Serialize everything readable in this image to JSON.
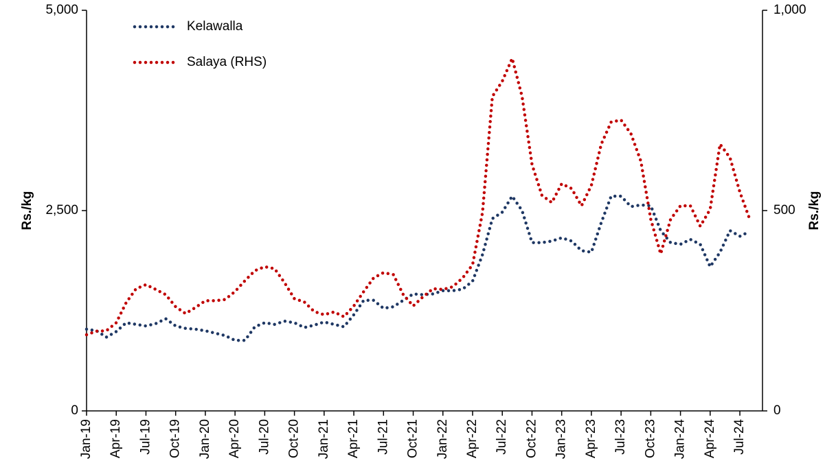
{
  "chart_data": {
    "type": "line",
    "categories": [
      "Jan-19",
      null,
      null,
      "Apr-19",
      null,
      null,
      "Jul-19",
      null,
      null,
      "Oct-19",
      null,
      null,
      "Jan-20",
      null,
      null,
      "Apr-20",
      null,
      null,
      "Jul-20",
      null,
      null,
      "Oct-20",
      null,
      null,
      "Jan-21",
      null,
      null,
      "Apr-21",
      null,
      null,
      "Jul-21",
      null,
      null,
      "Oct-21",
      null,
      null,
      "Jan-22",
      null,
      null,
      "Apr-22",
      null,
      null,
      "Jul-22",
      null,
      null,
      "Oct-22",
      null,
      null,
      "Jan-23",
      null,
      null,
      "Apr-23",
      null,
      null,
      "Jul-23",
      null,
      null,
      "Oct-23",
      null,
      null,
      "Jan-24",
      null,
      null,
      "Apr-24",
      null,
      null,
      "Jul-24",
      null
    ],
    "series": [
      {
        "name": "Kelawalla",
        "color": "#1f3864",
        "values": [
          1020,
          1000,
          920,
          990,
          1100,
          1080,
          1060,
          1090,
          1150,
          1060,
          1030,
          1020,
          1000,
          970,
          940,
          880,
          880,
          1050,
          1100,
          1080,
          1120,
          1100,
          1040,
          1070,
          1110,
          1080,
          1050,
          1200,
          1380,
          1380,
          1280,
          1300,
          1380,
          1460,
          1450,
          1460,
          1500,
          1500,
          1520,
          1620,
          1950,
          2400,
          2480,
          2680,
          2500,
          2100,
          2100,
          2120,
          2160,
          2120,
          2000,
          1980,
          2350,
          2680,
          2680,
          2550,
          2570,
          2560,
          2250,
          2100,
          2080,
          2140,
          2080,
          1800,
          1980,
          2250,
          2180,
          2240
        ]
      },
      {
        "name": "Salaya (RHS)",
        "color": "#c00000",
        "axis": "y2",
        "values": [
          190,
          199,
          200,
          220,
          270,
          305,
          315,
          303,
          290,
          260,
          243,
          258,
          275,
          275,
          278,
          298,
          325,
          350,
          360,
          355,
          320,
          280,
          272,
          248,
          240,
          247,
          235,
          262,
          298,
          332,
          345,
          340,
          290,
          262,
          285,
          305,
          303,
          310,
          332,
          365,
          495,
          785,
          823,
          880,
          785,
          615,
          538,
          520,
          567,
          555,
          512,
          563,
          666,
          721,
          726,
          692,
          623,
          478,
          392,
          478,
          512,
          512,
          461,
          503,
          666,
          632,
          546,
          478
        ]
      }
    ],
    "y_label": "Rs./kg",
    "y2_label": "Rs./kg",
    "ylim": [
      0,
      5000
    ],
    "yticks": [
      0,
      {
        "value": 2500,
        "label": "2,500"
      },
      {
        "value": 5000,
        "label": "5,000"
      }
    ],
    "y2lim": [
      0,
      1000
    ],
    "y2ticks": [
      0,
      500,
      {
        "value": 1000,
        "label": "1,000"
      }
    ],
    "legend": "top-left"
  }
}
